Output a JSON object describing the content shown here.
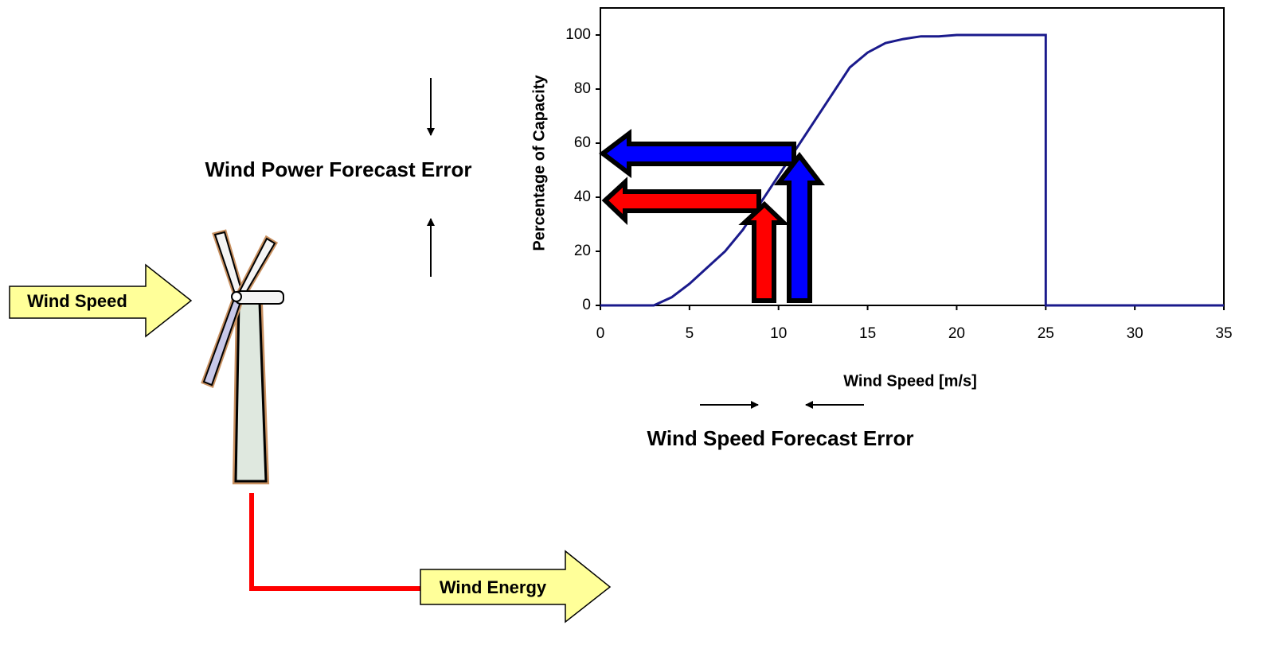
{
  "diagram": {
    "wind_speed": "Wind Speed",
    "wind_energy": "Wind Energy",
    "power_error": "Wind Power Forecast Error",
    "speed_error": "Wind Speed Forecast Error"
  },
  "chart_data": {
    "type": "line",
    "x_label": "Wind Speed [m/s]",
    "y_label": "Percentage of Capacity",
    "x": [
      0,
      3,
      4,
      5,
      6,
      7,
      8,
      9,
      10,
      11,
      12,
      13,
      14,
      15,
      16,
      17,
      18,
      19,
      20,
      25,
      25,
      35
    ],
    "series": [
      {
        "color": "#1a1a8c",
        "values": [
          0,
          0,
          3,
          8,
          14,
          20,
          28,
          38,
          48,
          58,
          68,
          78,
          88,
          93.5,
          97,
          98.5,
          99.5,
          99.5,
          100,
          100,
          0,
          0
        ]
      }
    ],
    "xlim": [
      0,
      35
    ],
    "ylim": [
      0,
      110
    ],
    "xticks": [
      0,
      5,
      10,
      15,
      20,
      25,
      30,
      35
    ],
    "yticks": [
      0,
      20,
      40,
      60,
      80,
      100
    ]
  }
}
